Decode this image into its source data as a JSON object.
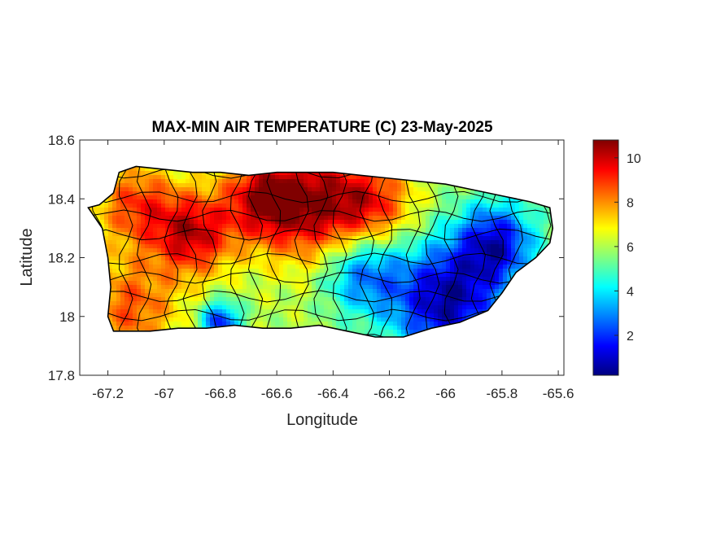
{
  "chart_data": {
    "type": "heatmap",
    "title": "MAX-MIN AIR TEMPERATURE (C) 23-May-2025",
    "xlabel": "Longitude",
    "ylabel": "Latitude",
    "xlim": [
      -67.3,
      -65.58
    ],
    "ylim": [
      17.8,
      18.6
    ],
    "x_ticks": [
      -67.2,
      -67.0,
      -66.8,
      -66.6,
      -66.4,
      -66.2,
      -66.0,
      -65.8,
      -65.6
    ],
    "x_tick_labels": [
      "-67.2",
      "-67",
      "-66.8",
      "-66.6",
      "-66.4",
      "-66.2",
      "-66",
      "-65.8",
      "-65.6"
    ],
    "y_ticks": [
      17.8,
      18.0,
      18.2,
      18.4,
      18.6
    ],
    "y_tick_labels": [
      "17.8",
      "18",
      "18.2",
      "18.4",
      "18.6"
    ],
    "colorbar": {
      "colormap": "jet",
      "range": [
        0.2,
        10.8
      ],
      "ticks": [
        2,
        4,
        6,
        8,
        10
      ],
      "tick_labels": [
        "2",
        "4",
        "6",
        "8",
        "10"
      ],
      "placement": "right"
    },
    "grid": false,
    "region_outline": [
      [
        -67.27,
        18.37
      ],
      [
        -67.23,
        18.38
      ],
      [
        -67.18,
        18.42
      ],
      [
        -67.16,
        18.49
      ],
      [
        -67.1,
        18.51
      ],
      [
        -67.0,
        18.5
      ],
      [
        -66.9,
        18.49
      ],
      [
        -66.8,
        18.49
      ],
      [
        -66.7,
        18.48
      ],
      [
        -66.6,
        18.49
      ],
      [
        -66.5,
        18.49
      ],
      [
        -66.4,
        18.49
      ],
      [
        -66.3,
        18.48
      ],
      [
        -66.2,
        18.47
      ],
      [
        -66.1,
        18.46
      ],
      [
        -66.0,
        18.45
      ],
      [
        -65.9,
        18.43
      ],
      [
        -65.8,
        18.41
      ],
      [
        -65.7,
        18.39
      ],
      [
        -65.63,
        18.37
      ],
      [
        -65.62,
        18.3
      ],
      [
        -65.63,
        18.25
      ],
      [
        -65.68,
        18.2
      ],
      [
        -65.75,
        18.15
      ],
      [
        -65.8,
        18.08
      ],
      [
        -65.85,
        18.02
      ],
      [
        -65.9,
        18.0
      ],
      [
        -65.95,
        17.98
      ],
      [
        -66.05,
        17.96
      ],
      [
        -66.15,
        17.93
      ],
      [
        -66.25,
        17.93
      ],
      [
        -66.35,
        17.95
      ],
      [
        -66.45,
        17.97
      ],
      [
        -66.55,
        17.96
      ],
      [
        -66.65,
        17.96
      ],
      [
        -66.75,
        17.97
      ],
      [
        -66.85,
        17.96
      ],
      [
        -66.95,
        17.96
      ],
      [
        -67.05,
        17.95
      ],
      [
        -67.1,
        17.95
      ],
      [
        -67.18,
        17.95
      ],
      [
        -67.2,
        18.0
      ],
      [
        -67.19,
        18.1
      ],
      [
        -67.2,
        18.2
      ],
      [
        -67.22,
        18.3
      ]
    ],
    "field_hotspots": [
      {
        "lon": -66.45,
        "lat": 18.38,
        "value": 10.2,
        "sigma": 0.14
      },
      {
        "lon": -66.65,
        "lat": 18.4,
        "value": 9.6,
        "sigma": 0.1
      },
      {
        "lon": -66.9,
        "lat": 18.28,
        "value": 10.0,
        "sigma": 0.1
      },
      {
        "lon": -67.1,
        "lat": 18.38,
        "value": 8.8,
        "sigma": 0.1
      },
      {
        "lon": -67.12,
        "lat": 18.03,
        "value": 8.6,
        "sigma": 0.12
      },
      {
        "lon": -66.25,
        "lat": 18.38,
        "value": 8.4,
        "sigma": 0.1
      },
      {
        "lon": -66.0,
        "lat": 18.05,
        "value": 0.6,
        "sigma": 0.14
      },
      {
        "lon": -65.82,
        "lat": 18.25,
        "value": 1.5,
        "sigma": 0.1
      },
      {
        "lon": -66.3,
        "lat": 18.15,
        "value": 2.6,
        "sigma": 0.1
      },
      {
        "lon": -66.8,
        "lat": 17.98,
        "value": 1.8,
        "sigma": 0.05
      }
    ],
    "field_base_value": 6.0
  }
}
